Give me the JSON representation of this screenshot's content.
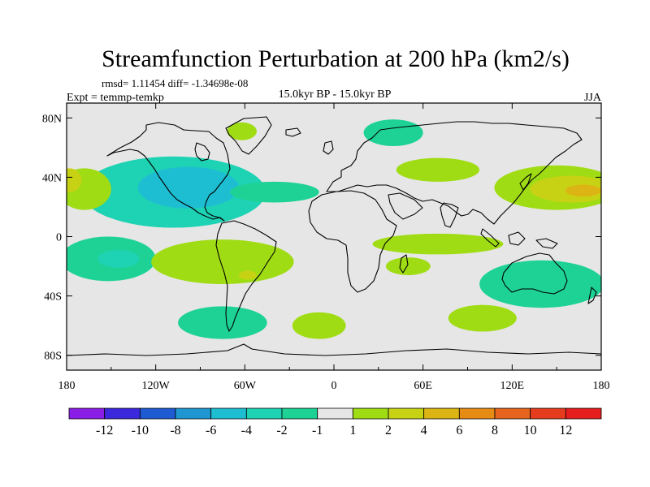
{
  "chart_data": {
    "type": "heatmap",
    "title": "Streamfunction Perturbation at 200 hPa (km2/s)",
    "stats_label": "rmsd= 1.11454 diff= -1.34698e-08",
    "left_label": "Expt = temmp-temkp",
    "center_label": "15.0kyr BP - 15.0kyr BP",
    "right_label": "JJA",
    "x_ticks": [
      {
        "value": -180,
        "label": "180"
      },
      {
        "value": -120,
        "label": "120W"
      },
      {
        "value": -60,
        "label": "60W"
      },
      {
        "value": 0,
        "label": "0"
      },
      {
        "value": 60,
        "label": "60E"
      },
      {
        "value": 120,
        "label": "120E"
      },
      {
        "value": 180,
        "label": "180"
      }
    ],
    "y_ticks": [
      {
        "value": 80,
        "label": "80N"
      },
      {
        "value": 40,
        "label": "40N"
      },
      {
        "value": 0,
        "label": "0"
      },
      {
        "value": -40,
        "label": "40S"
      },
      {
        "value": -80,
        "label": "80S"
      }
    ],
    "xlim": [
      -180,
      180
    ],
    "ylim": [
      -90,
      90
    ],
    "colorbar": {
      "levels": [
        "-12",
        "-10",
        "-8",
        "-6",
        "-4",
        "-2",
        "-1",
        "1",
        "2",
        "4",
        "6",
        "8",
        "10",
        "12"
      ],
      "colors": [
        "#8a1ee6",
        "#3c28dc",
        "#1e5ad2",
        "#1e96d2",
        "#1ebed2",
        "#1ed2b4",
        "#1ed296",
        "#e6e6e6",
        "#a0dc14",
        "#c8d214",
        "#dcb414",
        "#e68c14",
        "#e6641e",
        "#e63c1e",
        "#e61e1e"
      ]
    },
    "background_color": "#e6e6e6",
    "regions": [
      {
        "name": "north-america-negative",
        "cx": -108,
        "cy": 30,
        "rx": 62,
        "ry": 24,
        "color": "#1ed2b4"
      },
      {
        "name": "north-america-core",
        "cx": -98,
        "cy": 33,
        "rx": 34,
        "ry": 14,
        "color": "#1ebed2"
      },
      {
        "name": "atlantic-negative-tail",
        "cx": -40,
        "cy": 30,
        "rx": 30,
        "ry": 7,
        "color": "#1ed296"
      },
      {
        "name": "east-pacific-positive",
        "cx": -168,
        "cy": 32,
        "rx": 18,
        "ry": 14,
        "color": "#a0dc14"
      },
      {
        "name": "date-line-positive-west",
        "cx": -178,
        "cy": 38,
        "rx": 8,
        "ry": 8,
        "color": "#c8d214"
      },
      {
        "name": "greenland-positive",
        "cx": -62,
        "cy": 71,
        "rx": 10,
        "ry": 6,
        "color": "#a0dc14"
      },
      {
        "name": "scandinavia-negative",
        "cx": 40,
        "cy": 70,
        "rx": 20,
        "ry": 9,
        "color": "#1ed296"
      },
      {
        "name": "west-asia-positive",
        "cx": 70,
        "cy": 45,
        "rx": 28,
        "ry": 8,
        "color": "#a0dc14"
      },
      {
        "name": "east-asia-positive",
        "cx": 150,
        "cy": 33,
        "rx": 42,
        "ry": 15,
        "color": "#a0dc14"
      },
      {
        "name": "northwest-pacific-core",
        "cx": 160,
        "cy": 32,
        "rx": 28,
        "ry": 9,
        "color": "#c8d214"
      },
      {
        "name": "northwest-pacific-max",
        "cx": 168,
        "cy": 31,
        "rx": 12,
        "ry": 4,
        "color": "#dcb414"
      },
      {
        "name": "indian-ocean-positive",
        "cx": 70,
        "cy": -5,
        "rx": 44,
        "ry": 7,
        "color": "#a0dc14"
      },
      {
        "name": "mozambique-positive",
        "cx": 50,
        "cy": -20,
        "rx": 15,
        "ry": 6,
        "color": "#a0dc14"
      },
      {
        "name": "south-pacific-negative",
        "cx": -152,
        "cy": -15,
        "rx": 32,
        "ry": 15,
        "color": "#1ed296"
      },
      {
        "name": "south-pacific-core",
        "cx": -145,
        "cy": -15,
        "rx": 14,
        "ry": 6,
        "color": "#1ed2b4"
      },
      {
        "name": "south-america-positive",
        "cx": -75,
        "cy": -17,
        "rx": 48,
        "ry": 15,
        "color": "#a0dc14"
      },
      {
        "name": "south-america-core",
        "cx": -58,
        "cy": -26,
        "rx": 6,
        "ry": 3,
        "color": "#c8d214"
      },
      {
        "name": "australia-negative",
        "cx": 140,
        "cy": -32,
        "rx": 42,
        "ry": 16,
        "color": "#1ed296"
      },
      {
        "name": "patagonia-negative",
        "cx": -75,
        "cy": -58,
        "rx": 30,
        "ry": 11,
        "color": "#1ed296"
      },
      {
        "name": "south-atlantic-positive",
        "cx": -10,
        "cy": -60,
        "rx": 18,
        "ry": 9,
        "color": "#a0dc14"
      },
      {
        "name": "south-indian-positive",
        "cx": 100,
        "cy": -55,
        "rx": 23,
        "ry": 9,
        "color": "#a0dc14"
      }
    ]
  }
}
